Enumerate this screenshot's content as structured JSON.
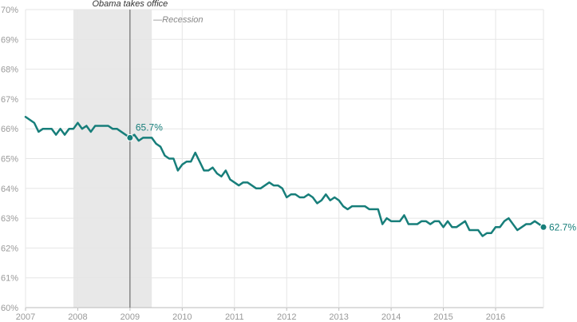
{
  "chart_data": {
    "type": "line",
    "title": "",
    "xlabel": "",
    "ylabel": "",
    "xlim": [
      2007,
      2016.917
    ],
    "ylim": [
      60,
      70
    ],
    "y_ticks": [
      "60%",
      "61%",
      "62%",
      "63%",
      "64%",
      "65%",
      "66%",
      "67%",
      "68%",
      "69%",
      "70%"
    ],
    "x_ticks": [
      "2007",
      "2008",
      "2009",
      "2010",
      "2011",
      "2012",
      "2013",
      "2014",
      "2015",
      "2016"
    ],
    "grid": true,
    "colors": {
      "line": "#177e7a",
      "recession": "#e8e8e8",
      "grid": "#e6e6e6"
    },
    "recession": {
      "start": 2007.917,
      "end": 2009.417,
      "label": "Recession"
    },
    "event": {
      "x": 2009.0,
      "label": "Obama takes office"
    },
    "callouts": [
      {
        "x": 2009.0,
        "y": 65.7,
        "label": "65.7%"
      },
      {
        "x": 2016.917,
        "y": 62.7,
        "label": "62.7%"
      }
    ],
    "series": [
      {
        "start_year": 2007,
        "values": [
          66.4,
          66.3,
          66.2,
          65.9,
          66.0,
          66.0,
          66.0,
          65.8,
          66.0,
          65.8,
          66.0,
          66.0,
          66.2,
          66.0,
          66.1,
          65.9,
          66.1,
          66.1,
          66.1,
          66.1,
          66.0,
          66.0,
          65.9,
          65.8,
          65.7,
          65.8,
          65.6,
          65.7,
          65.7,
          65.7,
          65.5,
          65.4,
          65.1,
          65.0,
          65.0,
          64.6,
          64.8,
          64.9,
          64.9,
          65.2,
          64.9,
          64.6,
          64.6,
          64.7,
          64.5,
          64.4,
          64.6,
          64.3,
          64.2,
          64.1,
          64.2,
          64.2,
          64.1,
          64.0,
          64.0,
          64.1,
          64.2,
          64.1,
          64.1,
          64.0,
          63.7,
          63.8,
          63.8,
          63.7,
          63.7,
          63.8,
          63.7,
          63.5,
          63.6,
          63.8,
          63.6,
          63.7,
          63.6,
          63.4,
          63.3,
          63.4,
          63.4,
          63.4,
          63.4,
          63.3,
          63.3,
          63.3,
          62.8,
          63.0,
          62.9,
          62.9,
          62.9,
          63.1,
          62.8,
          62.8,
          62.8,
          62.9,
          62.9,
          62.8,
          62.9,
          62.9,
          62.7,
          62.9,
          62.7,
          62.7,
          62.8,
          62.9,
          62.6,
          62.6,
          62.6,
          62.4,
          62.5,
          62.5,
          62.7,
          62.7,
          62.9,
          63.0,
          62.8,
          62.6,
          62.7,
          62.8,
          62.8,
          62.9,
          62.8,
          62.7
        ]
      }
    ]
  }
}
